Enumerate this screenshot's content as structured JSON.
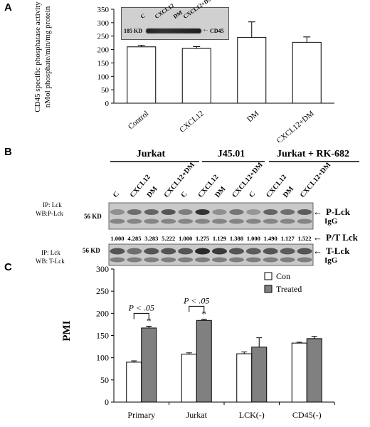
{
  "panels": {
    "a": "A",
    "b": "B",
    "c": "C"
  },
  "panel_a": {
    "ylabel_line1": "CD45 specific phosphatase activity",
    "ylabel_line2": "nMol phosphate/min/mg protein",
    "inset": {
      "marker": "185 KD",
      "lanes": [
        "C",
        "CXCL12",
        "DM",
        "CXCL12+DM"
      ],
      "band_label": "CD45"
    }
  },
  "panel_b": {
    "groups": [
      "Jurkat",
      "J45.01",
      "Jurkat + RK-682"
    ],
    "lanes": [
      "C",
      "CXCL12",
      "DM",
      "CXCL12+DM",
      "C",
      "CXCL12",
      "DM",
      "CXCL12+DM",
      "C",
      "CXCL12",
      "DM",
      "CXCL12+DM"
    ],
    "top_blot": {
      "ip": "IP: Lck",
      "wb": "WB:P-Lck",
      "marker": "56 KD",
      "labels": [
        "P-Lck",
        "IgG"
      ]
    },
    "ratios": [
      "1.000",
      "4.285",
      "3.283",
      "5.222",
      "1.000",
      "1.275",
      "1.129",
      "1.388",
      "1.000",
      "1.490",
      "1.127",
      "1.522"
    ],
    "ratio_label": "P/T Lck",
    "bottom_blot": {
      "ip": "IP: Lck",
      "wb": "WB: T-Lck",
      "marker": "56 KD",
      "labels": [
        "T-Lck",
        "IgG"
      ]
    }
  },
  "colors": {
    "bar_open": "#ffffff",
    "bar_treated": "#808080",
    "blot_bg": "#c8c8c8",
    "band": "#3a3a3a"
  },
  "chart_data": [
    {
      "type": "bar",
      "categories": [
        "Control",
        "CXCL12",
        "DM",
        "CXCL12+DM"
      ],
      "values": [
        210,
        204,
        245,
        227
      ],
      "errors": [
        6,
        7,
        58,
        20
      ],
      "ylim": [
        0,
        350
      ],
      "yticks": [
        0,
        50,
        100,
        150,
        200,
        250,
        300,
        350
      ],
      "ylabel": "CD45 specific phosphatase activity nMol phosphate/min/mg protein",
      "xlabel": "",
      "grid": false
    },
    {
      "type": "bar",
      "categories": [
        "Primary",
        "Jurkat",
        "LCK(-)",
        "CD45(-)"
      ],
      "series": [
        {
          "name": "Con",
          "values": [
            90,
            108,
            109,
            133
          ],
          "errors": [
            3,
            3,
            4,
            2
          ]
        },
        {
          "name": "Treated",
          "values": [
            167,
            184,
            124,
            143
          ],
          "errors": [
            4,
            3,
            21,
            5
          ]
        }
      ],
      "ylim": [
        0,
        300
      ],
      "yticks": [
        0,
        50,
        100,
        150,
        200,
        250,
        300
      ],
      "ylabel": "PMI",
      "xlabel": "",
      "legend_position": "top-right",
      "annotations": [
        {
          "category": "Primary",
          "text": "P < .05",
          "star": "*"
        },
        {
          "category": "Jurkat",
          "text": "P < .05",
          "star": "*"
        }
      ],
      "grid": false
    }
  ]
}
